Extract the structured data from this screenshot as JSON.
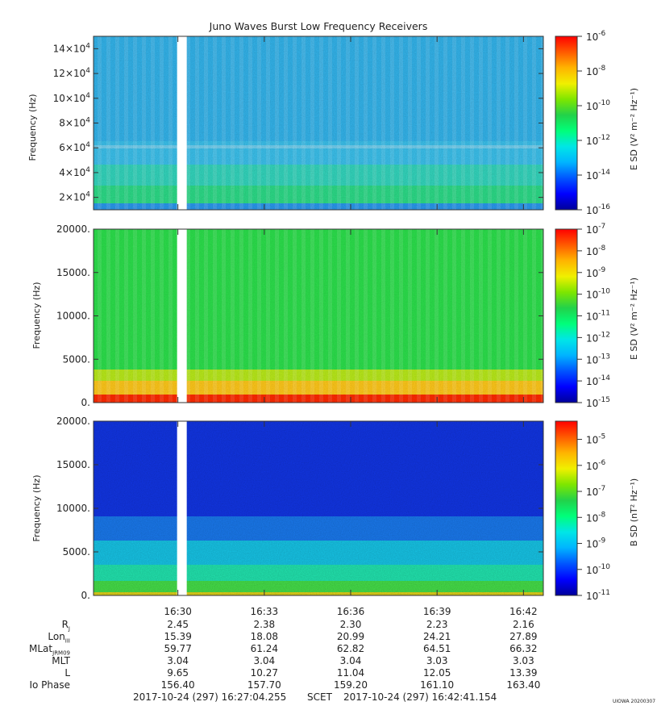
{
  "title": "Juno Waves Burst Low Frequency Receivers",
  "colors": {
    "colormap": [
      "#00009a",
      "#0000ff",
      "#0055ff",
      "#00b4ff",
      "#00e6e6",
      "#00ff7a",
      "#22d24a",
      "#7ee600",
      "#f0f000",
      "#ffb400",
      "#ff5a00",
      "#ff0000"
    ]
  },
  "chart_data": [
    {
      "type": "heatmap",
      "ylabel": "Frequency (Hz)",
      "ylim": [
        10000,
        150000
      ],
      "yticks": [
        20000,
        40000,
        60000,
        80000,
        100000,
        120000,
        140000
      ],
      "ytick_labels": [
        {
          "m": "2",
          "e": "4"
        },
        {
          "m": "4",
          "e": "4"
        },
        {
          "m": "6",
          "e": "4"
        },
        {
          "m": "8",
          "e": "4"
        },
        {
          "m": "10",
          "e": "4"
        },
        {
          "m": "12",
          "e": "4"
        },
        {
          "m": "14",
          "e": "4"
        }
      ],
      "colorbar": {
        "label": "E SD (V² m⁻² Hz⁻¹)",
        "scale": "log",
        "range_exp": [
          -16,
          -6
        ],
        "ticks": [
          {
            "m": "10",
            "e": "-6"
          },
          {
            "m": "10",
            "e": "-8"
          },
          {
            "m": "10",
            "e": "-10"
          },
          {
            "m": "10",
            "e": "-12"
          },
          {
            "m": "10",
            "e": "-14"
          },
          {
            "m": "10",
            "e": "-16"
          }
        ]
      },
      "data_gap": [
        "16:30:00",
        "16:30:15"
      ]
    },
    {
      "type": "heatmap",
      "ylabel": "Frequency (Hz)",
      "ylim": [
        0,
        20000
      ],
      "yticks": [
        0,
        5000,
        10000,
        15000,
        20000
      ],
      "ytick_labels": [
        "0.",
        "5000.",
        "10000.",
        "15000.",
        "20000."
      ],
      "colorbar": {
        "label": "E SD (V² m⁻² Hz⁻¹)",
        "scale": "log",
        "range_exp": [
          -15,
          -7
        ],
        "ticks": [
          {
            "m": "10",
            "e": "-7"
          },
          {
            "m": "10",
            "e": "-8"
          },
          {
            "m": "10",
            "e": "-9"
          },
          {
            "m": "10",
            "e": "-10"
          },
          {
            "m": "10",
            "e": "-11"
          },
          {
            "m": "10",
            "e": "-12"
          },
          {
            "m": "10",
            "e": "-13"
          },
          {
            "m": "10",
            "e": "-14"
          },
          {
            "m": "10",
            "e": "-15"
          }
        ]
      },
      "data_gap": [
        "16:30:00",
        "16:30:15"
      ]
    },
    {
      "type": "heatmap",
      "ylabel": "Frequency (Hz)",
      "ylim": [
        0,
        20000
      ],
      "yticks": [
        0,
        5000,
        10000,
        15000,
        20000
      ],
      "ytick_labels": [
        "0.",
        "5000.",
        "10000.",
        "15000.",
        "20000."
      ],
      "colorbar": {
        "label": "B SD (nT² Hz⁻¹)",
        "scale": "log",
        "range_exp": [
          -11,
          -4.3
        ],
        "ticks": [
          {
            "m": "10",
            "e": "-5"
          },
          {
            "m": "10",
            "e": "-6"
          },
          {
            "m": "10",
            "e": "-7"
          },
          {
            "m": "10",
            "e": "-8"
          },
          {
            "m": "10",
            "e": "-9"
          },
          {
            "m": "10",
            "e": "-10"
          },
          {
            "m": "10",
            "e": "-11"
          }
        ]
      },
      "data_gap": [
        "16:30:00",
        "16:30:15"
      ]
    }
  ],
  "x_axis": {
    "time_ticks": [
      "16:30",
      "16:33",
      "16:36",
      "16:39",
      "16:42"
    ],
    "time_minutes": [
      30,
      33,
      36,
      39,
      42
    ],
    "range_minutes": [
      27.07,
      42.69
    ]
  },
  "ephemeris": [
    {
      "label": "R",
      "sub": "J",
      "values": [
        "2.45",
        "2.38",
        "2.30",
        "2.23",
        "2.16"
      ]
    },
    {
      "label": "Lon",
      "sub": "III",
      "values": [
        "15.39",
        "18.08",
        "20.99",
        "24.21",
        "27.89"
      ]
    },
    {
      "label": "MLat",
      "sub": "JRM09",
      "values": [
        "59.77",
        "61.24",
        "62.82",
        "64.51",
        "66.32"
      ]
    },
    {
      "label": "MLT",
      "sub": "",
      "values": [
        "3.04",
        "3.04",
        "3.04",
        "3.03",
        "3.03"
      ]
    },
    {
      "label": "L",
      "sub": "",
      "values": [
        "9.65",
        "10.27",
        "11.04",
        "12.05",
        "13.39"
      ]
    },
    {
      "label": "Io Phase",
      "sub": "",
      "values": [
        "156.40",
        "157.70",
        "159.20",
        "161.10",
        "163.40"
      ]
    }
  ],
  "footer": {
    "start": "2017-10-24 (297) 16:27:04.255",
    "scet": "SCET",
    "end": "2017-10-24 (297) 16:42:41.154",
    "stamp": "UIOWA 20200307"
  }
}
